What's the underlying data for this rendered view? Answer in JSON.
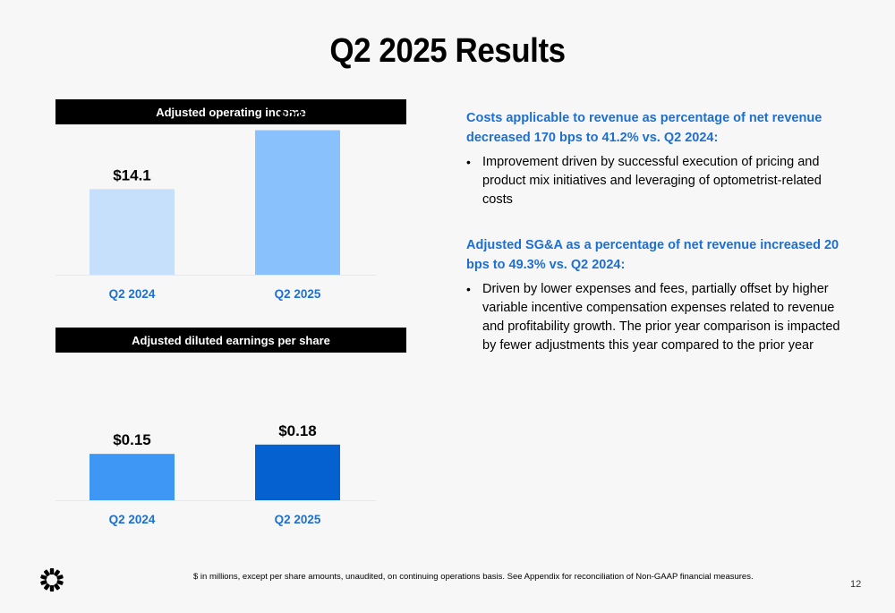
{
  "title": "Q2 2025 Results",
  "chart_data": [
    {
      "type": "bar",
      "title": "Adjusted operating income",
      "categories": [
        "Q2 2024",
        "Q2 2025"
      ],
      "values": [
        14.1,
        23.8
      ],
      "value_labels": [
        "$14.1",
        "$23.8"
      ],
      "colors": [
        "#c6e0fb",
        "#88c1fb"
      ],
      "ylim": [
        0,
        28
      ],
      "xlabel": "",
      "ylabel": ""
    },
    {
      "type": "bar",
      "title": "Adjusted diluted earnings per share",
      "categories": [
        "Q2 2024",
        "Q2 2025"
      ],
      "values": [
        0.15,
        0.18
      ],
      "value_labels": [
        "$0.15",
        "$0.18"
      ],
      "colors": [
        "#3f97f5",
        "#0560d0"
      ],
      "ylim": [
        0,
        0.55
      ],
      "xlabel": "",
      "ylabel": ""
    }
  ],
  "commentary": [
    {
      "heading": "Costs applicable to revenue as percentage of net revenue decreased 170 bps to 41.2% vs. Q2 2024:",
      "bullet": "Improvement driven by successful execution of pricing and product mix initiatives and leveraging of optometrist-related costs"
    },
    {
      "heading": "Adjusted SG&A as a percentage of net revenue increased 20 bps to 49.3% vs. Q2 2024:",
      "bullet": "Driven by lower expenses and fees, partially offset by higher variable incentive compensation expenses related to revenue and profitability growth. The prior year comparison is impacted by fewer adjustments this year compared to the prior year"
    }
  ],
  "footnote": "$ in millions, except per share amounts, unaudited, on continuing operations basis. See Appendix for reconciliation of Non-GAAP financial measures.",
  "page_number": "12",
  "colors": {
    "accent": "#1d6fd0",
    "header_bg": "#000000",
    "background": "#f7f7f7"
  },
  "logo_icon": "starburst-logo-icon"
}
